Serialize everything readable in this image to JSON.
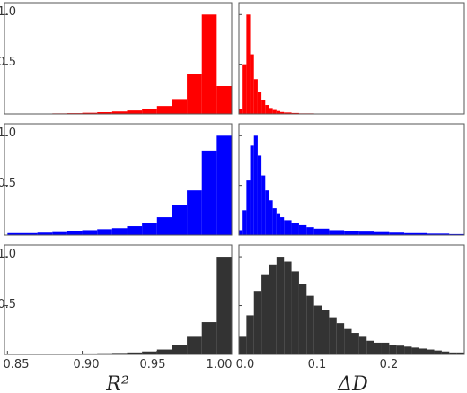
{
  "figure": {
    "xlabel_left": "R²",
    "xlabel_right": "ΔD",
    "yticks": [
      "0.5",
      "1.0"
    ],
    "xticks_left": [
      "0.85",
      "0.90",
      "0.95",
      "1.00"
    ],
    "xticks_right": [
      "0.0",
      "0.1",
      "0.2"
    ]
  },
  "chart_data": [
    {
      "type": "bar",
      "panel": "row1-left",
      "color": "#ff0000",
      "xlabel": "",
      "xlim": [
        0.848,
        1.0
      ],
      "ylim": [
        0,
        1.12
      ],
      "bin_edges": [
        0.85,
        0.86,
        0.87,
        0.88,
        0.89,
        0.9,
        0.91,
        0.92,
        0.93,
        0.94,
        0.95,
        0.96,
        0.97,
        0.98,
        0.99,
        1.0
      ],
      "values": [
        0.002,
        0.003,
        0.004,
        0.006,
        0.008,
        0.012,
        0.018,
        0.025,
        0.035,
        0.05,
        0.08,
        0.15,
        0.4,
        1.0,
        0.28
      ]
    },
    {
      "type": "bar",
      "panel": "row1-right",
      "color": "#ff0000",
      "xlabel": "",
      "xlim": [
        0.0,
        0.3
      ],
      "ylim": [
        0,
        1.12
      ],
      "bin_edges": [
        0.0,
        0.005,
        0.01,
        0.015,
        0.02,
        0.025,
        0.03,
        0.035,
        0.04,
        0.045,
        0.05,
        0.055,
        0.06,
        0.07,
        0.08,
        0.1,
        0.12,
        0.15
      ],
      "values": [
        0.05,
        0.5,
        1.0,
        0.6,
        0.35,
        0.22,
        0.14,
        0.09,
        0.06,
        0.04,
        0.03,
        0.02,
        0.015,
        0.01,
        0.006,
        0.004,
        0.002
      ]
    },
    {
      "type": "bar",
      "panel": "row2-left",
      "color": "#0000ff",
      "xlabel": "",
      "xlim": [
        0.848,
        1.0
      ],
      "ylim": [
        0,
        1.12
      ],
      "bin_edges": [
        0.85,
        0.86,
        0.87,
        0.88,
        0.89,
        0.9,
        0.91,
        0.92,
        0.93,
        0.94,
        0.95,
        0.96,
        0.97,
        0.98,
        0.99,
        1.0
      ],
      "values": [
        0.02,
        0.02,
        0.025,
        0.03,
        0.04,
        0.05,
        0.06,
        0.07,
        0.09,
        0.12,
        0.18,
        0.3,
        0.45,
        0.85,
        1.0
      ]
    },
    {
      "type": "bar",
      "panel": "row2-right",
      "color": "#0000ff",
      "xlabel": "",
      "xlim": [
        0.0,
        0.3
      ],
      "ylim": [
        0,
        1.12
      ],
      "bin_edges": [
        0.0,
        0.005,
        0.01,
        0.015,
        0.02,
        0.025,
        0.03,
        0.035,
        0.04,
        0.045,
        0.05,
        0.055,
        0.06,
        0.07,
        0.08,
        0.09,
        0.1,
        0.12,
        0.14,
        0.16,
        0.18,
        0.2,
        0.22,
        0.25,
        0.28,
        0.3
      ],
      "values": [
        0.05,
        0.25,
        0.55,
        0.9,
        1.0,
        0.8,
        0.6,
        0.45,
        0.35,
        0.27,
        0.22,
        0.18,
        0.15,
        0.12,
        0.1,
        0.08,
        0.065,
        0.05,
        0.04,
        0.035,
        0.03,
        0.025,
        0.02,
        0.015,
        0.01
      ]
    },
    {
      "type": "bar",
      "panel": "row3-left",
      "color": "#333333",
      "xlabel": "R²",
      "xlim": [
        0.848,
        1.0
      ],
      "ylim": [
        0,
        1.12
      ],
      "xticks": [
        0.85,
        0.9,
        0.95,
        1.0
      ],
      "bin_edges": [
        0.85,
        0.86,
        0.87,
        0.88,
        0.89,
        0.9,
        0.91,
        0.92,
        0.93,
        0.94,
        0.95,
        0.96,
        0.97,
        0.98,
        0.99,
        1.0
      ],
      "values": [
        0.003,
        0.004,
        0.005,
        0.006,
        0.008,
        0.01,
        0.012,
        0.015,
        0.02,
        0.03,
        0.05,
        0.1,
        0.18,
        0.33,
        1.0
      ]
    },
    {
      "type": "bar",
      "panel": "row3-right",
      "color": "#333333",
      "xlabel": "ΔD",
      "xlim": [
        0.0,
        0.3
      ],
      "ylim": [
        0,
        1.12
      ],
      "xticks": [
        0.0,
        0.1,
        0.2
      ],
      "bin_edges": [
        0.0,
        0.01,
        0.02,
        0.03,
        0.04,
        0.05,
        0.06,
        0.07,
        0.08,
        0.09,
        0.1,
        0.11,
        0.12,
        0.13,
        0.14,
        0.15,
        0.16,
        0.17,
        0.18,
        0.19,
        0.2,
        0.21,
        0.22,
        0.23,
        0.24,
        0.25,
        0.26,
        0.27,
        0.28,
        0.29,
        0.3
      ],
      "values": [
        0.18,
        0.4,
        0.65,
        0.82,
        0.92,
        1.0,
        0.95,
        0.85,
        0.72,
        0.6,
        0.5,
        0.45,
        0.38,
        0.32,
        0.26,
        0.22,
        0.18,
        0.14,
        0.12,
        0.12,
        0.1,
        0.09,
        0.08,
        0.07,
        0.06,
        0.05,
        0.04,
        0.03,
        0.02,
        0.02
      ]
    }
  ]
}
